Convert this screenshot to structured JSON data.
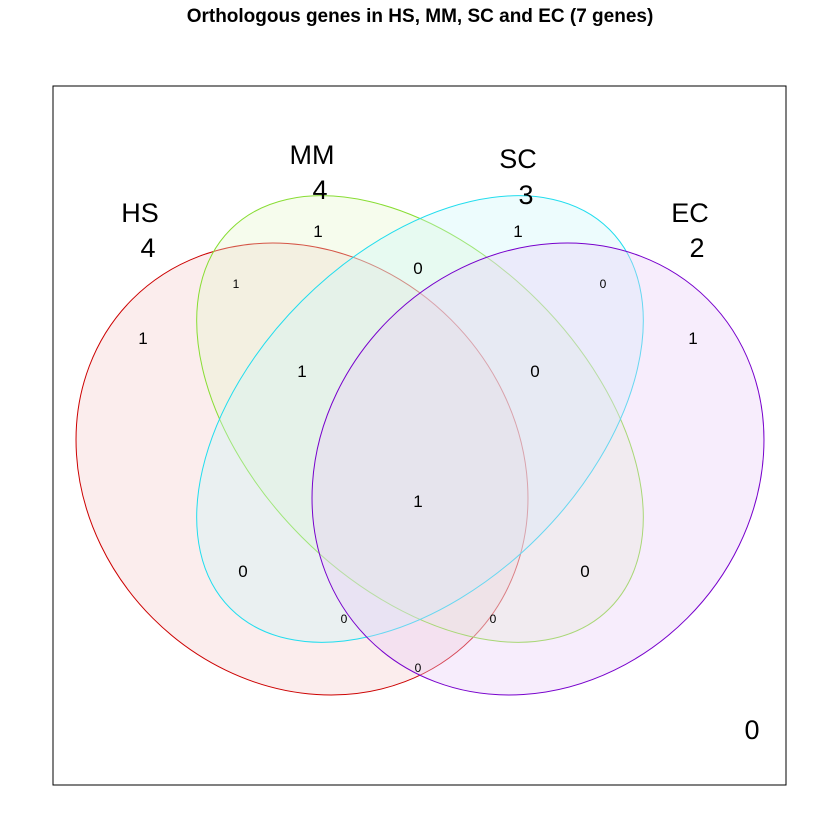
{
  "title": "Orthologous genes in HS, MM, SC and EC (7 genes)",
  "sets": [
    {
      "key": "HS",
      "name": "HS",
      "total": "4",
      "stroke": "#cc0000",
      "fill": "#f4cccc"
    },
    {
      "key": "MM",
      "name": "MM",
      "total": "4",
      "stroke": "#88dd33",
      "fill": "#e6f7cc"
    },
    {
      "key": "SC",
      "name": "SC",
      "total": "3",
      "stroke": "#22ddee",
      "fill": "#ccf5f8"
    },
    {
      "key": "EC",
      "name": "EC",
      "total": "2",
      "stroke": "#7700cc",
      "fill": "#e8ccf7"
    }
  ],
  "regions": [
    {
      "id": "HS_only",
      "value": "1"
    },
    {
      "id": "MM_only",
      "value": "1"
    },
    {
      "id": "SC_only",
      "value": "1"
    },
    {
      "id": "EC_only",
      "value": "1"
    },
    {
      "id": "HS_MM",
      "value": "1"
    },
    {
      "id": "MM_SC",
      "value": "0"
    },
    {
      "id": "SC_EC",
      "value": "0"
    },
    {
      "id": "HS_MM_SC",
      "value": "1"
    },
    {
      "id": "MM_SC_EC",
      "value": "0"
    },
    {
      "id": "HS_MM_SC_EC",
      "value": "1"
    },
    {
      "id": "HS_SC",
      "value": "0"
    },
    {
      "id": "MM_EC",
      "value": "0"
    },
    {
      "id": "HS_SC_EC",
      "value": "0"
    },
    {
      "id": "HS_MM_EC",
      "value": "0"
    },
    {
      "id": "HS_EC",
      "value": "0"
    }
  ],
  "outside": "0"
}
